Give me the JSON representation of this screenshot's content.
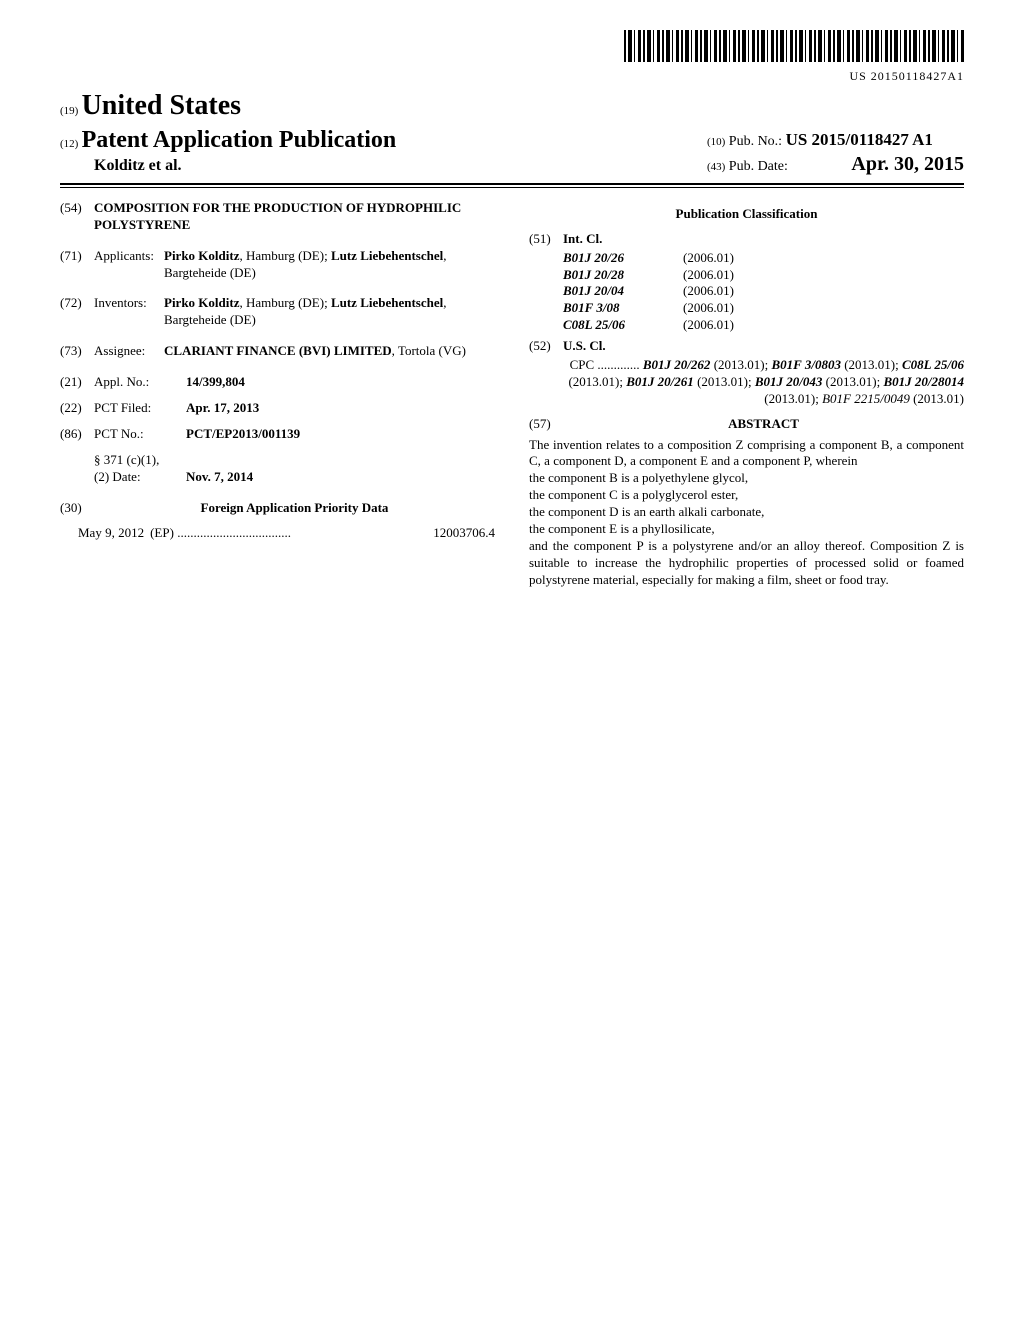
{
  "barcode_number": "US 20150118427A1",
  "header": {
    "num19": "(19)",
    "country": "United States",
    "num12": "(12)",
    "pub_app": "Patent Application Publication",
    "authors": "Kolditz et al.",
    "num10": "(10)",
    "pubno_label": "Pub. No.:",
    "pubno": "US 2015/0118427 A1",
    "num43": "(43)",
    "pubdate_label": "Pub. Date:",
    "pubdate": "Apr. 30, 2015"
  },
  "f54": {
    "num": "(54)",
    "title": "COMPOSITION FOR THE PRODUCTION OF HYDROPHILIC POLYSTYRENE"
  },
  "f71": {
    "num": "(71)",
    "label": "Applicants:",
    "value": "Pirko Kolditz, Hamburg (DE); Lutz Liebehentschel, Bargteheide (DE)"
  },
  "f72": {
    "num": "(72)",
    "label": "Inventors:",
    "value": "Pirko Kolditz, Hamburg (DE); Lutz Liebehentschel, Bargteheide (DE)"
  },
  "f73": {
    "num": "(73)",
    "label": "Assignee:",
    "value": "CLARIANT FINANCE (BVI) LIMITED, Tortola (VG)"
  },
  "f21": {
    "num": "(21)",
    "label": "Appl. No.:",
    "value": "14/399,804"
  },
  "f22": {
    "num": "(22)",
    "label": "PCT Filed:",
    "value": "Apr. 17, 2013"
  },
  "f86": {
    "num": "(86)",
    "label": "PCT No.:",
    "value": "PCT/EP2013/001139",
    "sub1": "§ 371 (c)(1),",
    "sub2_label": "(2) Date:",
    "sub2_value": "Nov. 7, 2014"
  },
  "f30": {
    "num": "(30)",
    "heading": "Foreign Application Priority Data",
    "date": "May 9, 2012",
    "cc": "(EP)",
    "appno": "12003706.4"
  },
  "pubclass_heading": "Publication Classification",
  "f51": {
    "num": "(51)",
    "label": "Int. Cl.",
    "rows": [
      {
        "code": "B01J 20/26",
        "ver": "(2006.01)"
      },
      {
        "code": "B01J 20/28",
        "ver": "(2006.01)"
      },
      {
        "code": "B01J 20/04",
        "ver": "(2006.01)"
      },
      {
        "code": "B01F 3/08",
        "ver": "(2006.01)"
      },
      {
        "code": "C08L 25/06",
        "ver": "(2006.01)"
      }
    ]
  },
  "f52": {
    "num": "(52)",
    "label": "U.S. Cl.",
    "cpc_label": "CPC",
    "cpc_dots": " ............. ",
    "cpc_items": [
      {
        "code": "B01J 20/262",
        "date": "(2013.01)",
        "bold": true,
        "lead": ""
      },
      {
        "code": "B01F 3/0803",
        "date": "(2013.01)",
        "bold": true,
        "lead": "; "
      },
      {
        "code": "C08L 25/06",
        "date": "(2013.01)",
        "bold": true,
        "lead": "; "
      },
      {
        "code": "B01J 20/261",
        "date": "(2013.01)",
        "bold": true,
        "lead": "; "
      },
      {
        "code": "B01J 20/043",
        "date": "(2013.01)",
        "bold": true,
        "lead": "; "
      },
      {
        "code": "B01J 20/28014",
        "date": "(2013.01)",
        "bold": true,
        "lead": "; "
      },
      {
        "code": "B01F 2215/0049",
        "date": "(2013.01)",
        "bold": false,
        "lead": "; "
      }
    ]
  },
  "f57": {
    "num": "(57)",
    "heading": "ABSTRACT",
    "p1": "The invention relates to a composition Z comprising a component B, a component C, a component D, a component E and a component P, wherein",
    "li1": "the component B is a polyethylene glycol,",
    "li2": "the component C is a polyglycerol ester,",
    "li3": "the component D is an earth alkali carbonate,",
    "li4": "the component E is a phyllosilicate,",
    "li5": "and the component P is a polystyrene and/or an alloy thereof.",
    "p2": "Composition Z is suitable to increase the hydrophilic properties of processed solid or foamed polystyrene material, especially for making a film, sheet or food tray."
  }
}
